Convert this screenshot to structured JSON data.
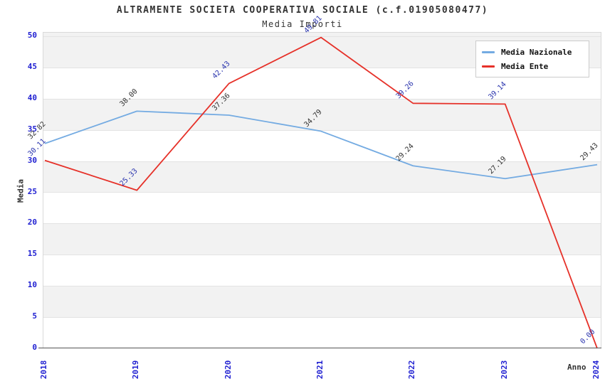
{
  "page": {
    "title": "ALTRAMENTE SOCIETA COOPERATIVA SOCIALE (c.f.01905080477)",
    "subtitle": "Media Importi"
  },
  "chart_data": {
    "type": "line",
    "title": "ALTRAMENTE SOCIETA COOPERATIVA SOCIALE (c.f.01905080477)",
    "subtitle": "Media Importi",
    "xlabel": "Anno",
    "ylabel": "Media",
    "categories": [
      "2018",
      "2019",
      "2020",
      "2021",
      "2022",
      "2023",
      "2024"
    ],
    "series": [
      {
        "name": "Media Nazionale",
        "color": "#74abe2",
        "label_color": "#333333",
        "values": [
          32.82,
          38.0,
          37.36,
          34.79,
          29.24,
          27.19,
          29.43
        ]
      },
      {
        "name": "Media Ente",
        "color": "#e63129",
        "label_color": "#2b35ae",
        "values": [
          30.11,
          25.33,
          42.43,
          49.81,
          39.26,
          39.14,
          0.0
        ]
      }
    ],
    "ylim": [
      0,
      50
    ],
    "ytick_step": 5,
    "yticks": [
      0,
      5,
      10,
      15,
      20,
      25,
      30,
      35,
      40,
      45,
      50
    ],
    "tick_color": "#1f1fd1",
    "band_color": "#f2f2f2",
    "grid": "horizontal-bands",
    "legend_position": "top-right",
    "value_label_decimals": 2
  }
}
